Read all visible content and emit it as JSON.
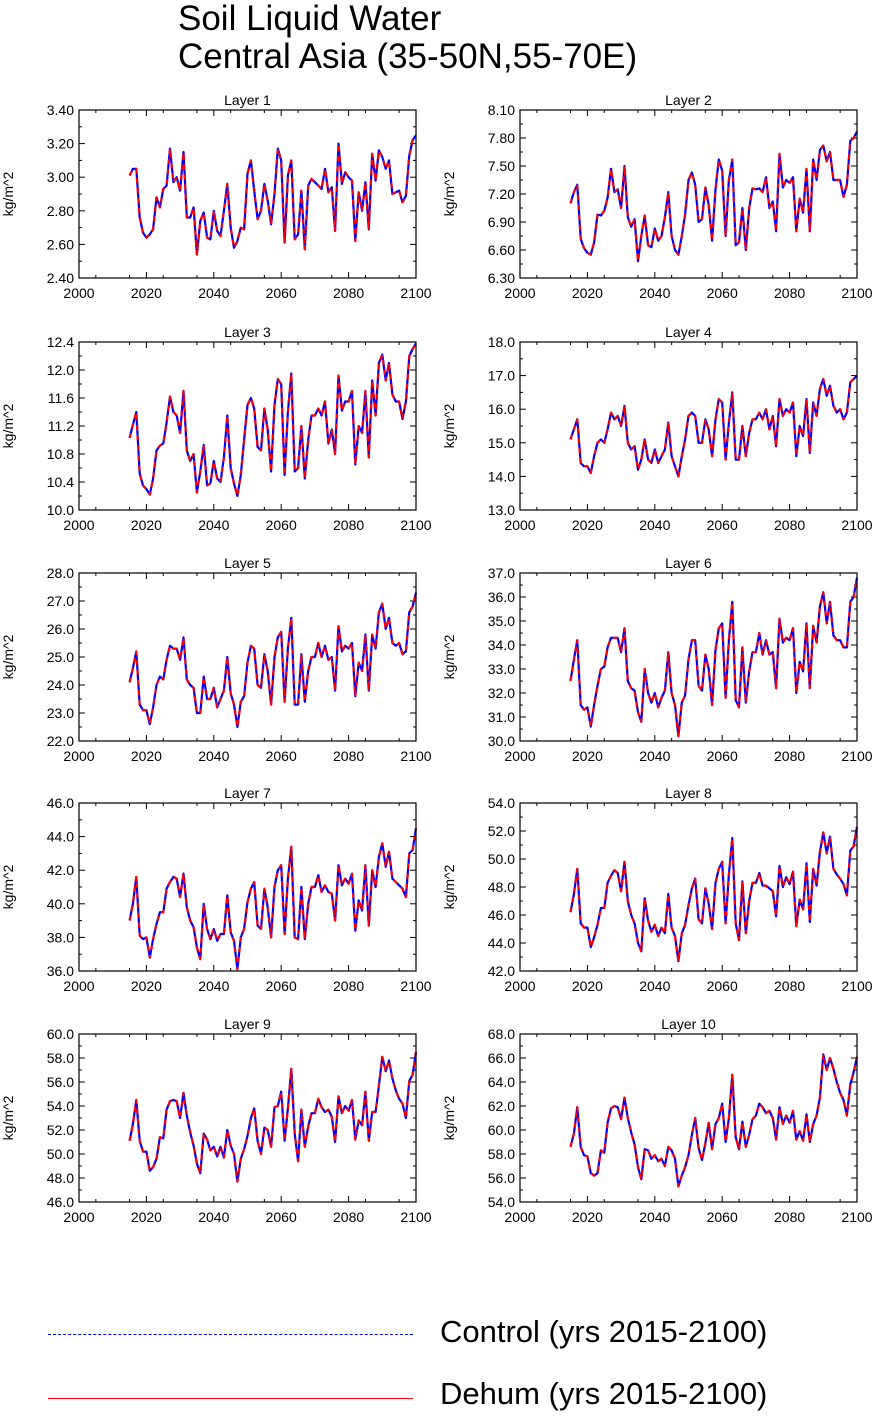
{
  "title": [
    "Soil Liquid Water",
    "Central Asia (35-50N,55-70E)"
  ],
  "legend": [
    {
      "label": "Control (yrs 2015-2100)",
      "color": "#0000ff",
      "style": "dashed"
    },
    {
      "label": "Dehum (yrs 2015-2100)",
      "color": "#ff0000",
      "style": "solid"
    }
  ],
  "x_ticks": [
    "2000",
    "2020",
    "2040",
    "2060",
    "2080",
    "2100"
  ],
  "chart_data": [
    {
      "type": "line",
      "title": "Layer 1",
      "ylabel": "kg/m^2",
      "xlim": [
        2000,
        2100
      ],
      "ylim": [
        2.4,
        3.4
      ],
      "yticks": [
        "2.40",
        "2.60",
        "2.80",
        "3.00",
        "3.20",
        "3.40"
      ],
      "x_start": 2015,
      "x_end": 2100,
      "values": [
        3.01,
        3.05,
        3.05,
        2.76,
        2.67,
        2.64,
        2.66,
        2.69,
        2.88,
        2.82,
        2.93,
        2.95,
        3.17,
        2.97,
        3.0,
        2.92,
        3.15,
        2.76,
        2.76,
        2.82,
        2.54,
        2.74,
        2.79,
        2.64,
        2.63,
        2.8,
        2.68,
        2.65,
        2.8,
        2.96,
        2.7,
        2.58,
        2.62,
        2.7,
        2.69,
        3.02,
        3.1,
        2.92,
        2.75,
        2.8,
        2.96,
        2.86,
        2.72,
        2.9,
        3.17,
        3.1,
        2.61,
        3.01,
        3.1,
        2.63,
        2.66,
        2.92,
        2.57,
        2.95,
        2.99,
        2.97,
        2.95,
        2.93,
        3.05,
        2.91,
        2.94,
        2.68,
        3.2,
        2.96,
        3.03,
        3.0,
        2.98,
        2.62,
        2.91,
        2.8,
        2.97,
        2.69,
        3.14,
        2.98,
        3.16,
        3.12,
        3.05,
        3.1,
        2.9,
        2.91,
        2.92,
        2.85,
        2.89,
        3.13,
        3.22,
        3.25
      ],
      "series": [
        {
          "name": "Control (yrs 2015-2100)"
        },
        {
          "name": "Dehum (yrs 2015-2100)"
        }
      ]
    },
    {
      "type": "line",
      "title": "Layer 2",
      "ylabel": "kg/m^2",
      "xlim": [
        2000,
        2100
      ],
      "ylim": [
        6.3,
        8.1
      ],
      "yticks": [
        "6.30",
        "6.60",
        "6.90",
        "7.20",
        "7.50",
        "7.80",
        "8.10"
      ],
      "x_start": 2015,
      "x_end": 2100,
      "values": [
        7.1,
        7.22,
        7.3,
        6.72,
        6.62,
        6.57,
        6.55,
        6.68,
        6.98,
        6.97,
        7.02,
        7.16,
        7.47,
        7.22,
        7.25,
        7.05,
        7.5,
        6.95,
        6.85,
        6.93,
        6.48,
        6.75,
        6.97,
        6.65,
        6.63,
        6.83,
        6.7,
        6.75,
        6.95,
        7.22,
        6.75,
        6.6,
        6.55,
        6.75,
        6.98,
        7.35,
        7.43,
        7.3,
        6.9,
        6.93,
        7.27,
        7.08,
        6.7,
        7.25,
        7.57,
        7.45,
        6.75,
        7.35,
        7.57,
        6.65,
        6.68,
        7.05,
        6.6,
        7.05,
        7.26,
        7.25,
        7.26,
        7.22,
        7.38,
        7.05,
        7.12,
        6.8,
        7.63,
        7.27,
        7.35,
        7.32,
        7.38,
        6.8,
        7.15,
        7.0,
        7.47,
        6.8,
        7.57,
        7.35,
        7.67,
        7.72,
        7.55,
        7.65,
        7.35,
        7.35,
        7.35,
        7.17,
        7.3,
        7.77,
        7.8,
        7.87
      ],
      "series": [
        {
          "name": "Control (yrs 2015-2100)"
        },
        {
          "name": "Dehum (yrs 2015-2100)"
        }
      ]
    },
    {
      "type": "line",
      "title": "Layer 3",
      "ylabel": "kg/m^2",
      "xlim": [
        2000,
        2100
      ],
      "ylim": [
        10.0,
        12.4
      ],
      "yticks": [
        "10.0",
        "10.4",
        "10.8",
        "11.2",
        "11.6",
        "12.0",
        "12.4"
      ],
      "x_start": 2015,
      "x_end": 2100,
      "values": [
        11.03,
        11.22,
        11.4,
        10.52,
        10.35,
        10.3,
        10.22,
        10.45,
        10.85,
        10.92,
        10.95,
        11.25,
        11.62,
        11.4,
        11.35,
        11.1,
        11.7,
        10.85,
        10.7,
        10.8,
        10.25,
        10.55,
        10.93,
        10.35,
        10.38,
        10.7,
        10.45,
        10.4,
        10.75,
        11.35,
        10.6,
        10.38,
        10.2,
        10.5,
        11.0,
        11.5,
        11.6,
        11.45,
        10.9,
        10.85,
        11.45,
        11.15,
        10.55,
        11.5,
        11.87,
        11.8,
        10.5,
        11.4,
        11.95,
        10.55,
        10.6,
        11.2,
        10.45,
        11.0,
        11.35,
        11.35,
        11.45,
        11.35,
        11.55,
        10.95,
        11.15,
        10.8,
        11.92,
        11.42,
        11.55,
        11.55,
        11.7,
        10.65,
        11.2,
        11.1,
        11.7,
        10.75,
        11.85,
        11.35,
        12.1,
        12.22,
        11.85,
        12.1,
        11.65,
        11.55,
        11.55,
        11.3,
        11.55,
        12.2,
        12.3,
        12.38
      ],
      "series": [
        {
          "name": "Control (yrs 2015-2100)"
        },
        {
          "name": "Dehum (yrs 2015-2100)"
        }
      ]
    },
    {
      "type": "line",
      "title": "Layer 4",
      "ylabel": "kg/m^2",
      "xlim": [
        2000,
        2100
      ],
      "ylim": [
        13.0,
        18.0
      ],
      "yticks": [
        "13.0",
        "14.0",
        "15.0",
        "16.0",
        "17.0",
        "18.0"
      ],
      "x_start": 2015,
      "x_end": 2100,
      "values": [
        15.1,
        15.4,
        15.7,
        14.4,
        14.3,
        14.3,
        14.1,
        14.6,
        15.0,
        15.1,
        15.0,
        15.4,
        15.9,
        15.7,
        15.8,
        15.5,
        16.1,
        15.0,
        14.8,
        14.9,
        14.2,
        14.5,
        15.1,
        14.5,
        14.4,
        14.8,
        14.4,
        14.6,
        14.8,
        15.6,
        14.6,
        14.3,
        14.0,
        14.6,
        15.1,
        15.8,
        15.9,
        15.8,
        15.0,
        15.0,
        15.7,
        15.4,
        14.6,
        15.7,
        16.3,
        16.2,
        14.5,
        15.6,
        16.5,
        14.5,
        14.5,
        15.5,
        14.6,
        15.3,
        15.7,
        15.7,
        15.9,
        15.7,
        16.0,
        15.4,
        15.8,
        14.9,
        16.3,
        15.8,
        16.0,
        15.9,
        16.2,
        14.6,
        15.5,
        15.2,
        16.3,
        14.7,
        16.2,
        15.8,
        16.6,
        16.9,
        16.4,
        16.7,
        16.1,
        15.9,
        16.0,
        15.7,
        15.9,
        16.8,
        16.9,
        17.0
      ],
      "series": [
        {
          "name": "Control (yrs 2015-2100)"
        },
        {
          "name": "Dehum (yrs 2015-2100)"
        }
      ]
    },
    {
      "type": "line",
      "title": "Layer 5",
      "ylabel": "kg/m^2",
      "xlim": [
        2000,
        2100
      ],
      "ylim": [
        22.0,
        28.0
      ],
      "yticks": [
        "22.0",
        "23.0",
        "24.0",
        "25.0",
        "26.0",
        "27.0",
        "28.0"
      ],
      "x_start": 2015,
      "x_end": 2100,
      "values": [
        24.1,
        24.6,
        25.2,
        23.3,
        23.1,
        23.1,
        22.6,
        23.2,
        24.0,
        24.3,
        24.2,
        24.9,
        25.4,
        25.3,
        25.3,
        24.9,
        25.7,
        24.2,
        24.0,
        23.9,
        23.0,
        23.0,
        24.3,
        23.5,
        23.5,
        23.9,
        23.2,
        23.5,
        23.8,
        25.0,
        23.7,
        23.3,
        22.5,
        23.4,
        23.6,
        24.8,
        25.4,
        25.3,
        24.0,
        23.9,
        25.1,
        24.5,
        23.3,
        25.0,
        25.7,
        25.9,
        23.4,
        25.3,
        26.4,
        23.3,
        23.3,
        25.1,
        23.4,
        24.5,
        25.0,
        25.0,
        25.5,
        25.0,
        25.4,
        24.9,
        25.0,
        23.8,
        26.1,
        25.2,
        25.4,
        25.3,
        25.5,
        23.6,
        24.8,
        24.5,
        25.8,
        23.8,
        25.8,
        25.3,
        26.6,
        26.9,
        26.0,
        26.4,
        25.5,
        25.4,
        25.5,
        25.1,
        25.2,
        26.6,
        26.8,
        27.3
      ],
      "series": [
        {
          "name": "Control (yrs 2015-2100)"
        },
        {
          "name": "Dehum (yrs 2015-2100)"
        }
      ]
    },
    {
      "type": "line",
      "title": "Layer 6",
      "ylabel": "kg/m^2",
      "xlim": [
        2000,
        2100
      ],
      "ylim": [
        30.0,
        37.0
      ],
      "yticks": [
        "30.0",
        "31.0",
        "32.0",
        "33.0",
        "34.0",
        "35.0",
        "36.0",
        "37.0"
      ],
      "x_start": 2015,
      "x_end": 2100,
      "values": [
        32.5,
        33.4,
        34.2,
        31.5,
        31.3,
        31.4,
        30.6,
        31.5,
        32.3,
        33.0,
        33.1,
        33.9,
        34.3,
        34.3,
        34.3,
        33.7,
        34.7,
        32.5,
        32.2,
        32.1,
        31.2,
        30.8,
        33.0,
        32.0,
        31.6,
        32.0,
        31.4,
        31.8,
        32.1,
        33.7,
        32.0,
        31.5,
        30.2,
        31.6,
        31.9,
        33.4,
        34.2,
        34.2,
        32.3,
        32.1,
        33.6,
        33.0,
        31.5,
        33.8,
        34.7,
        34.9,
        31.8,
        34.2,
        35.8,
        31.7,
        31.4,
        33.9,
        31.6,
        32.9,
        33.7,
        33.7,
        34.5,
        33.6,
        34.2,
        33.6,
        33.7,
        32.2,
        35.1,
        34.1,
        34.3,
        34.2,
        34.7,
        32.0,
        33.3,
        32.9,
        34.9,
        32.2,
        34.8,
        34.1,
        35.6,
        36.2,
        34.9,
        35.8,
        34.4,
        34.2,
        34.2,
        33.9,
        33.9,
        35.8,
        36.0,
        36.8
      ],
      "series": [
        {
          "name": "Control (yrs 2015-2100)"
        },
        {
          "name": "Dehum (yrs 2015-2100)"
        }
      ]
    },
    {
      "type": "line",
      "title": "Layer 7",
      "ylabel": "kg/m^2",
      "xlim": [
        2000,
        2100
      ],
      "ylim": [
        36.0,
        46.0
      ],
      "yticks": [
        "36.0",
        "38.0",
        "40.0",
        "42.0",
        "44.0",
        "46.0"
      ],
      "x_start": 2015,
      "x_end": 2100,
      "values": [
        39.0,
        40.0,
        41.6,
        38.1,
        37.9,
        38.0,
        36.8,
        37.9,
        38.8,
        39.5,
        39.5,
        40.9,
        41.3,
        41.6,
        41.5,
        40.4,
        41.8,
        39.8,
        39.0,
        38.6,
        37.4,
        36.7,
        40.0,
        38.5,
        37.9,
        38.5,
        37.8,
        38.2,
        38.2,
        40.5,
        38.3,
        37.8,
        36.1,
        38.0,
        38.5,
        40.1,
        40.9,
        41.3,
        38.7,
        38.5,
        40.9,
        39.8,
        38.0,
        41.0,
        42.0,
        42.3,
        38.2,
        41.5,
        43.4,
        38.0,
        37.9,
        41.0,
        37.9,
        40.0,
        41.0,
        41.0,
        41.7,
        40.7,
        41.1,
        40.7,
        40.6,
        39.0,
        42.3,
        41.1,
        41.5,
        41.2,
        41.8,
        38.4,
        40.2,
        39.6,
        42.3,
        38.7,
        42.0,
        41.0,
        42.8,
        43.6,
        42.2,
        43.1,
        41.5,
        41.3,
        41.1,
        40.9,
        40.4,
        43.0,
        43.2,
        44.5
      ],
      "series": [
        {
          "name": "Control (yrs 2015-2100)"
        },
        {
          "name": "Dehum (yrs 2015-2100)"
        }
      ]
    },
    {
      "type": "line",
      "title": "Layer 8",
      "ylabel": "kg/m^2",
      "xlim": [
        2000,
        2100
      ],
      "ylim": [
        42.0,
        54.0
      ],
      "yticks": [
        "42.0",
        "44.0",
        "46.0",
        "48.0",
        "50.0",
        "52.0",
        "54.0"
      ],
      "x_start": 2015,
      "x_end": 2100,
      "values": [
        46.2,
        47.5,
        49.3,
        45.4,
        45.1,
        45.1,
        43.7,
        44.4,
        45.3,
        46.5,
        46.5,
        48.3,
        48.8,
        49.2,
        49.0,
        47.7,
        49.8,
        47.0,
        46.0,
        45.4,
        44.0,
        43.4,
        47.2,
        45.6,
        44.8,
        45.3,
        44.5,
        45.1,
        44.7,
        47.5,
        45.1,
        44.5,
        42.7,
        44.7,
        45.3,
        46.7,
        47.9,
        48.6,
        45.7,
        45.4,
        47.9,
        46.8,
        45.0,
        48.3,
        49.3,
        49.8,
        45.4,
        48.9,
        51.5,
        45.4,
        44.2,
        48.4,
        44.7,
        47.0,
        48.3,
        48.3,
        49.0,
        48.1,
        48.1,
        47.9,
        47.7,
        45.9,
        49.5,
        48.0,
        48.7,
        48.2,
        49.1,
        45.2,
        47.1,
        46.4,
        49.7,
        45.5,
        49.3,
        48.1,
        50.5,
        51.9,
        50.4,
        51.6,
        49.3,
        48.9,
        48.6,
        48.2,
        47.4,
        50.6,
        50.9,
        52.3
      ],
      "series": [
        {
          "name": "Control (yrs 2015-2100)"
        },
        {
          "name": "Dehum (yrs 2015-2100)"
        }
      ]
    },
    {
      "type": "line",
      "title": "Layer 9",
      "ylabel": "kg/m^2",
      "xlim": [
        2000,
        2100
      ],
      "ylim": [
        46.0,
        60.0
      ],
      "yticks": [
        "46.0",
        "48.0",
        "50.0",
        "52.0",
        "54.0",
        "56.0",
        "58.0",
        "60.0"
      ],
      "x_start": 2015,
      "x_end": 2100,
      "values": [
        51.1,
        52.5,
        54.5,
        51.1,
        50.2,
        50.2,
        48.6,
        48.9,
        49.6,
        51.4,
        51.3,
        53.7,
        54.4,
        54.5,
        54.4,
        53.0,
        55.1,
        53.2,
        51.8,
        50.7,
        49.2,
        48.4,
        51.7,
        51.2,
        50.3,
        50.6,
        49.8,
        50.6,
        49.7,
        52.0,
        50.7,
        50.0,
        47.7,
        49.6,
        50.4,
        51.5,
        53.0,
        53.8,
        51.1,
        50.0,
        52.2,
        52.0,
        50.6,
        53.9,
        54.0,
        55.2,
        51.1,
        53.8,
        57.1,
        51.7,
        49.4,
        53.7,
        50.6,
        52.3,
        53.4,
        53.4,
        54.6,
        53.9,
        53.5,
        53.7,
        53.1,
        51.0,
        54.8,
        53.4,
        54.0,
        53.6,
        54.5,
        51.2,
        52.8,
        52.4,
        55.2,
        51.1,
        53.5,
        53.5,
        55.7,
        58.1,
        56.9,
        57.8,
        56.3,
        55.3,
        54.6,
        54.2,
        53.0,
        56.1,
        56.6,
        58.5
      ],
      "series": [
        {
          "name": "Control (yrs 2015-2100)"
        },
        {
          "name": "Dehum (yrs 2015-2100)"
        }
      ]
    },
    {
      "type": "line",
      "title": "Layer 10",
      "ylabel": "kg/m^2",
      "xlim": [
        2000,
        2100
      ],
      "ylim": [
        54.0,
        68.0
      ],
      "yticks": [
        "54.0",
        "56.0",
        "58.0",
        "60.0",
        "62.0",
        "64.0",
        "66.0",
        "68.0"
      ],
      "x_start": 2015,
      "x_end": 2100,
      "values": [
        58.6,
        59.7,
        61.9,
        58.6,
        57.9,
        57.8,
        56.4,
        56.2,
        56.4,
        58.3,
        58.1,
        60.6,
        61.8,
        62.0,
        61.9,
        60.9,
        62.7,
        61.0,
        59.8,
        58.8,
        56.9,
        55.9,
        58.4,
        58.3,
        57.6,
        57.9,
        57.4,
        57.6,
        57.0,
        58.6,
        58.3,
        57.6,
        55.3,
        56.2,
        56.9,
        57.9,
        59.6,
        61.0,
        58.5,
        57.5,
        58.9,
        60.6,
        58.4,
        60.5,
        61.0,
        62.2,
        59.0,
        61.0,
        64.6,
        59.4,
        58.4,
        60.7,
        58.6,
        59.6,
        60.9,
        61.2,
        62.2,
        61.9,
        61.4,
        61.6,
        61.0,
        59.2,
        61.9,
        60.5,
        61.2,
        60.6,
        61.6,
        59.2,
        59.9,
        59.1,
        61.3,
        59.0,
        60.5,
        61.2,
        62.7,
        66.3,
        65.0,
        66.0,
        65.1,
        64.0,
        63.1,
        62.5,
        61.2,
        63.8,
        64.8,
        66.1
      ],
      "series": [
        {
          "name": "Control (yrs 2015-2100)"
        },
        {
          "name": "Dehum (yrs 2015-2100)"
        }
      ]
    }
  ]
}
